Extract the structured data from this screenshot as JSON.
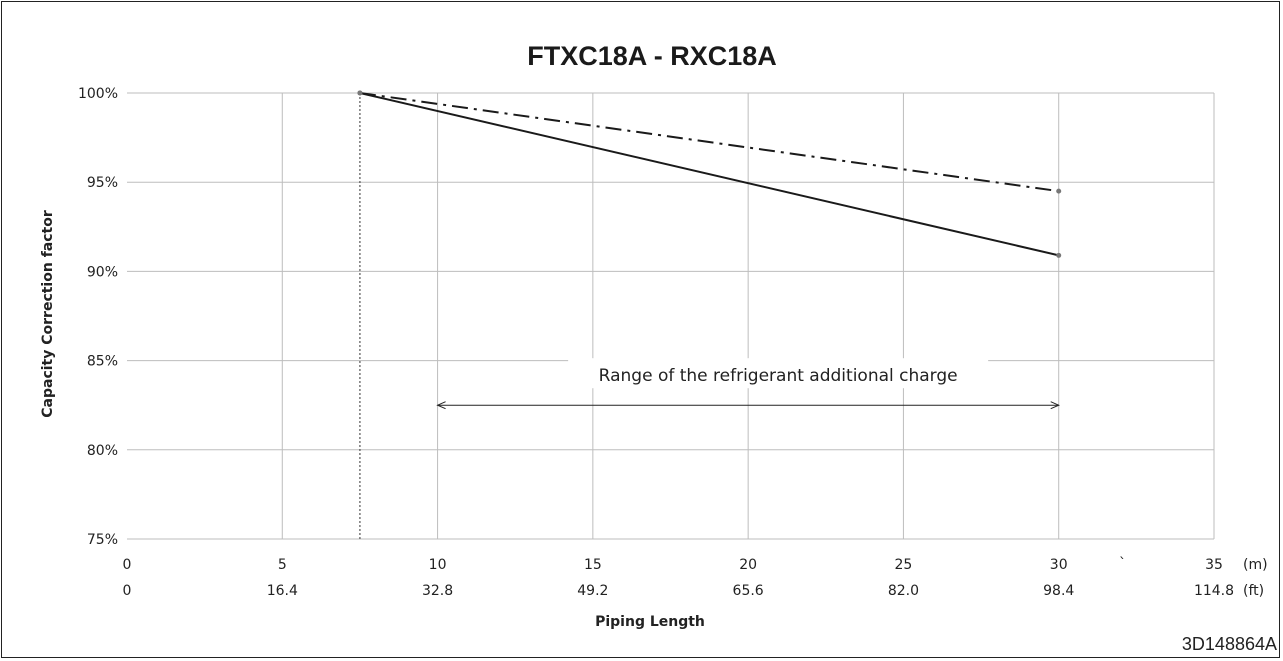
{
  "chart_data": {
    "type": "line",
    "title": "FTXC18A - RXC18A",
    "ylabel": "Capacity Correction factor",
    "xlabel": "Piping Length",
    "xlim": [
      0,
      35
    ],
    "ylim": [
      75,
      100
    ],
    "x_ticks": [
      {
        "value": 0,
        "m": "0",
        "ft": "0"
      },
      {
        "value": 5,
        "m": "5",
        "ft": "16.4"
      },
      {
        "value": 10,
        "m": "10",
        "ft": "32.8"
      },
      {
        "value": 15,
        "m": "15",
        "ft": "49.2"
      },
      {
        "value": 20,
        "m": "20",
        "ft": "65.6"
      },
      {
        "value": 25,
        "m": "25",
        "ft": "82.0"
      },
      {
        "value": 30,
        "m": "30",
        "ft": "98.4"
      },
      {
        "value": 35,
        "m": "35",
        "ft": "114.8"
      }
    ],
    "x_unit_m": "(m)",
    "x_unit_ft": "(ft)",
    "stray_mark": "`",
    "y_ticks": [
      {
        "value": 75,
        "label": "75%"
      },
      {
        "value": 80,
        "label": "80%"
      },
      {
        "value": 85,
        "label": "85%"
      },
      {
        "value": 90,
        "label": "90%"
      },
      {
        "value": 95,
        "label": "95%"
      },
      {
        "value": 100,
        "label": "100%"
      }
    ],
    "grid": true,
    "series": [
      {
        "style": "solid",
        "color": "#1a1a1a",
        "x": [
          7.5,
          30
        ],
        "y": [
          100,
          90.9
        ]
      },
      {
        "style": "dashdot",
        "color": "#1a1a1a",
        "x": [
          7.5,
          30
        ],
        "y": [
          100,
          94.5
        ]
      }
    ],
    "reference_line": {
      "x": 7.5,
      "style": "dotted"
    },
    "range_annotation": {
      "text": "Range of the refrigerant additional charge",
      "x_start": 10,
      "x_end": 30,
      "y": 82.5
    }
  },
  "figure_code": "3D148864A"
}
